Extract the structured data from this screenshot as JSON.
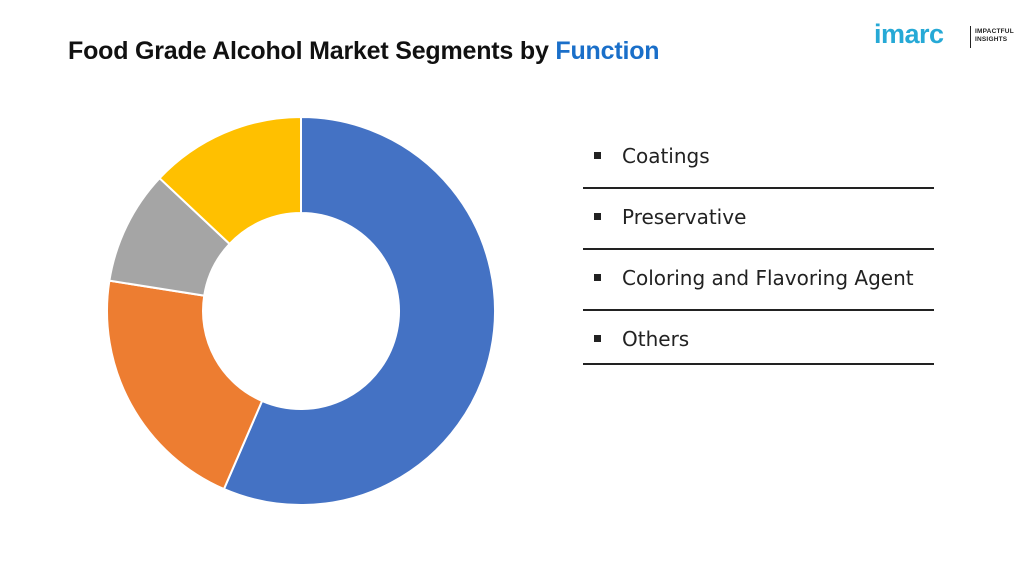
{
  "header": {
    "title_prefix": "Food Grade Alcohol Market Segments by ",
    "title_accent": "Function"
  },
  "logo": {
    "word": "imarc",
    "tagline_line1": "IMPACTFUL",
    "tagline_line2": "INSIGHTS"
  },
  "colors": {
    "title_accent": "#1a6fc9",
    "logo": "#26a9d6"
  },
  "chart_data": {
    "type": "pie",
    "variant": "donut",
    "title": "Food Grade Alcohol Market Segments by Function",
    "legend_position": "right",
    "categories": [
      "Coatings",
      "Preservative",
      "Coloring and Flavoring Agent",
      "Others"
    ],
    "slices": [
      {
        "label": "Others",
        "value": 56.5,
        "color": "#4472c4"
      },
      {
        "label": "Coatings",
        "value": 21.0,
        "color": "#ed7d31"
      },
      {
        "label": "Preservative",
        "value": 9.5,
        "color": "#a5a5a5"
      },
      {
        "label": "Coloring and Flavoring Agent",
        "value": 13.0,
        "color": "#ffc000"
      }
    ]
  }
}
